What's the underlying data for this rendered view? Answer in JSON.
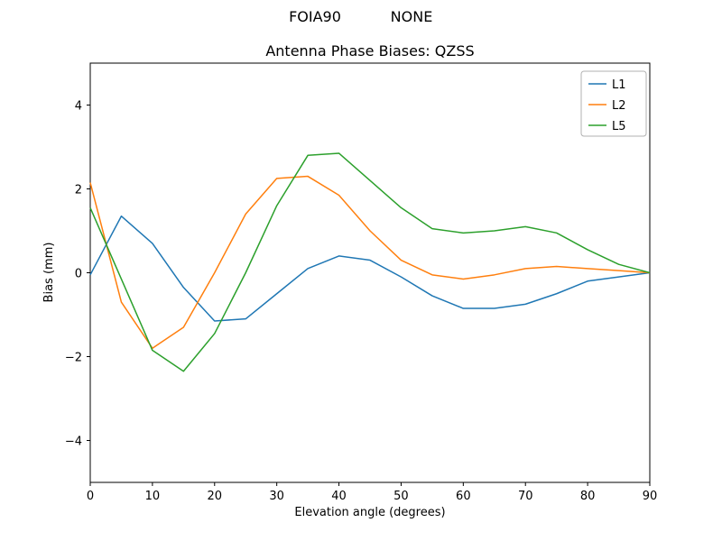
{
  "figure": {
    "suptitle_left": "FOIA90",
    "suptitle_right": "NONE"
  },
  "chart_data": {
    "type": "line",
    "title": "Antenna Phase Biases: QZSS",
    "xlabel": "Elevation angle (degrees)",
    "ylabel": "Bias (mm)",
    "xlim": [
      0,
      90
    ],
    "ylim": [
      -5,
      5
    ],
    "xticks": [
      0,
      10,
      20,
      30,
      40,
      50,
      60,
      70,
      80,
      90
    ],
    "yticks": [
      -4,
      -2,
      0,
      2,
      4
    ],
    "ytick_labels": [
      "−4",
      "−2",
      "0",
      "2",
      "4"
    ],
    "grid": false,
    "legend_position": "upper right",
    "x": [
      0,
      5,
      10,
      15,
      20,
      25,
      30,
      35,
      40,
      45,
      50,
      55,
      60,
      65,
      70,
      75,
      80,
      85,
      90
    ],
    "series": [
      {
        "name": "L1",
        "color": "#1f77b4",
        "values": [
          -0.05,
          1.35,
          0.7,
          -0.35,
          -1.15,
          -1.1,
          -0.5,
          0.1,
          0.4,
          0.3,
          -0.1,
          -0.55,
          -0.85,
          -0.85,
          -0.75,
          -0.5,
          -0.2,
          -0.1,
          0.0
        ]
      },
      {
        "name": "L2",
        "color": "#ff7f0e",
        "values": [
          2.15,
          -0.7,
          -1.8,
          -1.3,
          0.0,
          1.4,
          2.25,
          2.3,
          1.85,
          1.0,
          0.3,
          -0.05,
          -0.15,
          -0.05,
          0.1,
          0.15,
          0.1,
          0.05,
          0.0
        ]
      },
      {
        "name": "L5",
        "color": "#2ca02c",
        "values": [
          1.55,
          -0.15,
          -1.85,
          -2.35,
          -1.45,
          0.0,
          1.6,
          2.8,
          2.85,
          2.2,
          1.55,
          1.05,
          0.95,
          1.0,
          1.1,
          0.95,
          0.55,
          0.2,
          0.0
        ]
      }
    ]
  }
}
